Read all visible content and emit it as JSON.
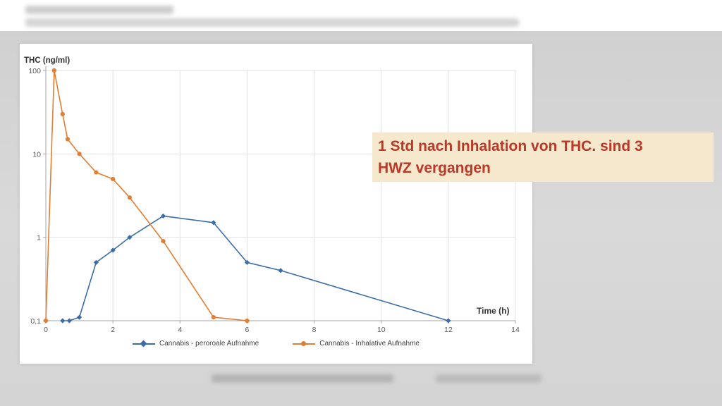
{
  "page": {
    "background_color": "#d9d9d9",
    "slide_color": "#ffffff"
  },
  "axes": {
    "y_title": "THC (ng/ml)",
    "x_title": "Time (h)"
  },
  "annotation": {
    "lines": [
      "1 Std nach Inhalation von THC. sind 3",
      "HWZ vergangen"
    ],
    "text_color": "#bb3726",
    "bg_color": "#f6e8cd"
  },
  "chart_data": {
    "type": "line",
    "title": "",
    "ylabel": "THC (ng/ml)",
    "xlabel": "Time (h)",
    "y_scale": "log",
    "grid": true,
    "legend_position": "bottom",
    "xlim": [
      0,
      14
    ],
    "ylim": [
      0.1,
      100
    ],
    "x_ticks": [
      0,
      2,
      4,
      6,
      8,
      10,
      12,
      14
    ],
    "y_ticks": [
      100,
      10,
      1,
      0.1
    ],
    "y_tick_labels": [
      "100",
      "10",
      "1",
      "0,1"
    ],
    "series": [
      {
        "name": "Cannabis - peroroale Aufnahme",
        "color": "#3c6da8",
        "marker": "diamond",
        "points": [
          [
            0.5,
            0.1
          ],
          [
            0.7,
            0.1
          ],
          [
            1,
            0.11
          ],
          [
            1.5,
            0.5
          ],
          [
            2,
            0.7
          ],
          [
            2.5,
            1.0
          ],
          [
            3.5,
            1.8
          ],
          [
            5,
            1.5
          ],
          [
            6,
            0.5
          ],
          [
            7,
            0.4
          ],
          [
            12,
            0.1
          ]
        ]
      },
      {
        "name": "Cannabis - Inhalative Aufnahme",
        "color": "#e07e33",
        "marker": "circle",
        "points": [
          [
            0,
            0.1
          ],
          [
            0.25,
            100
          ],
          [
            0.5,
            30
          ],
          [
            0.65,
            15
          ],
          [
            1,
            10
          ],
          [
            1.5,
            6
          ],
          [
            2,
            5
          ],
          [
            2.5,
            3
          ],
          [
            3.5,
            0.9
          ],
          [
            5,
            0.11
          ],
          [
            6,
            0.1
          ]
        ]
      }
    ]
  }
}
